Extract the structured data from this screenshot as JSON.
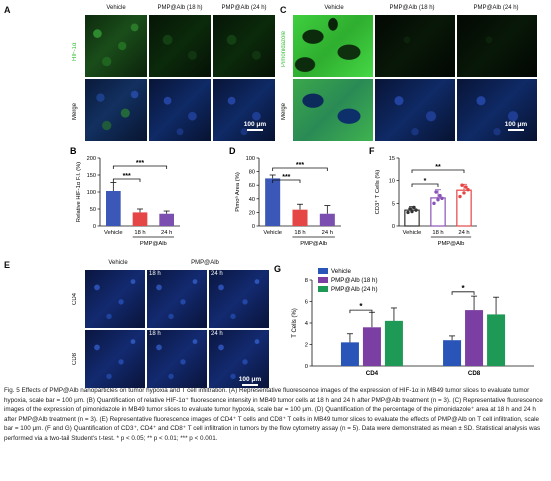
{
  "panels": {
    "A": {
      "label": "A",
      "columns": [
        "Vehicle",
        "PMP@Alb (18 h)",
        "PMP@Alb (24 h)"
      ],
      "rows": [
        "HIF-1α",
        "Merge"
      ],
      "scale_bar": "100 μm",
      "row_colors": [
        "#36c136",
        "#111111"
      ]
    },
    "C": {
      "label": "C",
      "columns": [
        "Vehicle",
        "PMP@Alb (18 h)",
        "PMP@Alb (24 h)"
      ],
      "rows": [
        "Pimonidazole",
        "Merge"
      ],
      "scale_bar": "100 μm"
    },
    "E": {
      "label": "E",
      "columns": [
        "Vehicle",
        "PMP@Alb"
      ],
      "rows": [
        "CD4",
        "CD8"
      ],
      "time_labels": [
        "18 h",
        "24 h",
        "18 h",
        "24 h"
      ],
      "scale_bar": "100 μm"
    }
  },
  "chart_data": [
    {
      "panel": "B",
      "type": "bar",
      "ylabel": "Relative HIF-1α F.I. (%)",
      "categories": [
        "Vehicle",
        "18 h",
        "24 h"
      ],
      "group_label": "PMP@Alb",
      "values": [
        103,
        40,
        36
      ],
      "errors": [
        25,
        10,
        8
      ],
      "colors": [
        "#3b58b8",
        "#e64545",
        "#7a4fb0"
      ],
      "ylim": [
        0,
        200
      ],
      "yticks": [
        "0",
        "50",
        "100",
        "150",
        "200"
      ],
      "significance": [
        "***",
        "***"
      ]
    },
    {
      "panel": "D",
      "type": "bar",
      "ylabel": "Pimoᵃ Area (%)",
      "categories": [
        "Vehicle",
        "18 h",
        "24 h"
      ],
      "group_label": "PMP@Alb",
      "values": [
        70,
        24,
        18
      ],
      "errors": [
        5,
        8,
        12
      ],
      "colors": [
        "#3b58b8",
        "#e64545",
        "#7a4fb0"
      ],
      "ylim": [
        0,
        100
      ],
      "yticks": [
        "0",
        "20",
        "40",
        "60",
        "80",
        "100"
      ],
      "significance": [
        "***",
        "***"
      ]
    },
    {
      "panel": "F",
      "type": "bar",
      "ylabel": "CD3⁺ T Cells (%)",
      "categories": [
        "Vehicle",
        "18 h",
        "24 h"
      ],
      "group_label": "PMP@Alb",
      "values": [
        3.5,
        6.2,
        7.9
      ],
      "errors": [
        0.8,
        1.8,
        1.3
      ],
      "colors": [
        "#333333",
        "#8a53b8",
        "#e64545"
      ],
      "ylim": [
        0,
        15
      ],
      "yticks": [
        "0",
        "5",
        "10",
        "15"
      ],
      "significance": [
        "*",
        "**"
      ]
    },
    {
      "panel": "G",
      "type": "bar",
      "ylabel": "T Cells (%)",
      "categories": [
        "CD4",
        "CD8"
      ],
      "series": [
        {
          "name": "Vehicle",
          "values": [
            2.2,
            2.4
          ],
          "errors": [
            0.8,
            0.4
          ],
          "color": "#2a55b8"
        },
        {
          "name": "PMP@Alb (18 h)",
          "values": [
            3.6,
            5.2
          ],
          "errors": [
            1.4,
            1.3
          ],
          "color": "#7b3fa3"
        },
        {
          "name": "PMP@Alb (24 h)",
          "values": [
            4.2,
            4.8
          ],
          "errors": [
            1.2,
            1.6
          ],
          "color": "#1f9a56"
        }
      ],
      "ylim": [
        0,
        8
      ],
      "yticks": [
        "0",
        "2",
        "4",
        "6",
        "8"
      ],
      "significance": [
        "*",
        "*"
      ]
    }
  ],
  "caption": "Fig. 5   Effects of PMP@Alb nanoparticles on tumor hypoxia and T cell infiltration. (A) Representative fluorescence images of the expression of HIF-1α in MB49 tumor slices to evaluate tumor hypoxia, scale bar = 100 μm. (B) Quantification of relative HIF-1α⁺ fluorescence intensity in MB49 tumor cells at 18 h and 24 h after PMP@Alb treatment (n = 3). (C) Representative fluorescence images of the expression of pimonidazole in MB49 tumor slices to evaluate tumor hypoxia, scale bar = 100 μm. (D) Quantification of the percentage of the pimonidazole⁺ area at 18 h and 24 h after PMP@Alb treatment (n = 3). (E) Representative fluorescence images of CD4⁺ T cells and CD8⁺ T cells in MB49 tumor slices to evaluate the effects of PMP@Alb on T cell infiltration, scale bar = 100 μm. (F and G) Quantification of CD3⁺, CD4⁺ and CD8⁺ T cell infiltration in tumors by the flow cytometry assay (n = 5). Data were demonstrated as mean ± SD. Statistical analysis was performed via a two-tail Student's t-test. * p < 0.05; ** p < 0.01; *** p < 0.001."
}
